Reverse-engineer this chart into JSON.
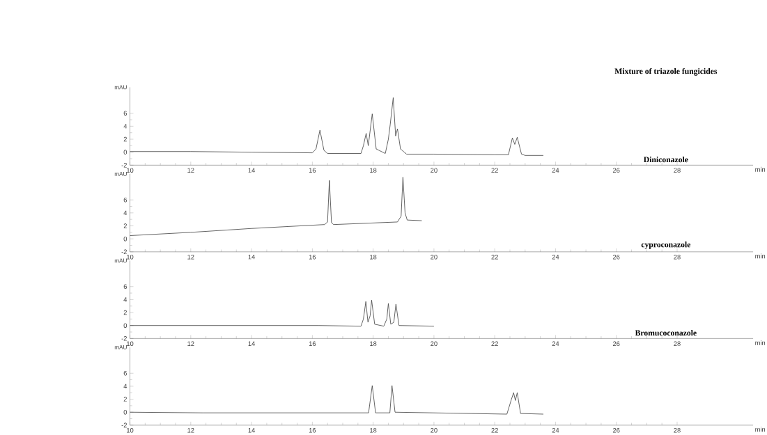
{
  "chart_data": [
    {
      "type": "line",
      "title": "Mixture of triazole fungicides",
      "xlabel": "min",
      "ylabel": "mAU",
      "xlim": [
        10,
        30.5
      ],
      "ylim": [
        -2,
        10
      ],
      "xticks": [
        10,
        12,
        14,
        16,
        18,
        20,
        22,
        24,
        26,
        28
      ],
      "yticks": [
        -2,
        0,
        2,
        4,
        6
      ],
      "grid": false,
      "series": [
        {
          "color": "#404040",
          "x": [
            10,
            12,
            14,
            16.0,
            16.12,
            16.25,
            16.38,
            16.5,
            17.6,
            17.68,
            17.77,
            17.84,
            17.97,
            18.1,
            18.4,
            18.5,
            18.56,
            18.66,
            18.74,
            18.8,
            18.9,
            19.1,
            20,
            22,
            22.45,
            22.58,
            22.66,
            22.74,
            22.88,
            23.0,
            23.6
          ],
          "values": [
            0.1,
            0.1,
            0.0,
            -0.1,
            0.5,
            3.4,
            0.3,
            -0.2,
            -0.2,
            1.0,
            2.9,
            1.0,
            5.9,
            0.5,
            -0.2,
            2.0,
            4.2,
            8.4,
            2.5,
            3.6,
            0.5,
            -0.3,
            -0.3,
            -0.4,
            -0.4,
            2.2,
            1.2,
            2.3,
            -0.3,
            -0.5,
            -0.5
          ]
        }
      ]
    },
    {
      "type": "line",
      "title": "Diniconazole",
      "xlabel": "min",
      "ylabel": "mAU",
      "xlim": [
        10,
        30.5
      ],
      "ylim": [
        -2,
        10
      ],
      "xticks": [
        10,
        12,
        14,
        16,
        18,
        20,
        22,
        24,
        26,
        28
      ],
      "yticks": [
        -2,
        0,
        2,
        4,
        6
      ],
      "grid": false,
      "series": [
        {
          "color": "#404040",
          "x": [
            10,
            12,
            14,
            16.4,
            16.5,
            16.56,
            16.63,
            16.7,
            18.8,
            18.92,
            18.98,
            19.05,
            19.12,
            19.6
          ],
          "values": [
            0.5,
            1.0,
            1.6,
            2.2,
            2.6,
            9.0,
            2.5,
            2.2,
            2.6,
            3.5,
            9.5,
            4.0,
            2.9,
            2.8
          ]
        }
      ]
    },
    {
      "type": "line",
      "title": "cyproconazole",
      "xlabel": "min",
      "ylabel": "mAU",
      "xlim": [
        10,
        30.5
      ],
      "ylim": [
        -2,
        10
      ],
      "xticks": [
        10,
        12,
        14,
        16,
        18,
        20,
        22,
        24,
        26,
        28
      ],
      "yticks": [
        -2,
        0,
        2,
        4,
        6
      ],
      "grid": false,
      "series": [
        {
          "color": "#404040",
          "x": [
            10,
            16.2,
            17.6,
            17.68,
            17.76,
            17.83,
            17.9,
            17.95,
            18.05,
            18.35,
            18.45,
            18.5,
            18.58,
            18.68,
            18.75,
            18.85,
            20
          ],
          "values": [
            0,
            0,
            -0.1,
            1,
            3.7,
            0.5,
            1.5,
            3.9,
            0.2,
            -0.1,
            1,
            3.4,
            0.2,
            0.5,
            3.3,
            0.0,
            -0.1
          ]
        }
      ]
    },
    {
      "type": "line",
      "title": "Bromucoconazole",
      "xlabel": "min",
      "ylabel": "mAU",
      "xlim": [
        10,
        30.5
      ],
      "ylim": [
        -2,
        10
      ],
      "xticks": [
        10,
        12,
        14,
        16,
        18,
        20,
        22,
        24,
        26,
        28
      ],
      "yticks": [
        -2,
        0,
        2,
        4,
        6
      ],
      "grid": false,
      "series": [
        {
          "color": "#404040",
          "x": [
            10,
            12.4,
            17.85,
            17.97,
            18.08,
            18.55,
            18.62,
            18.72,
            22.4,
            22.55,
            22.62,
            22.68,
            22.74,
            22.85,
            23.6
          ],
          "values": [
            0,
            -0.1,
            -0.1,
            4.1,
            -0.1,
            -0.1,
            4.1,
            0,
            -0.3,
            2.0,
            3.0,
            1.8,
            3.0,
            -0.2,
            -0.3
          ]
        }
      ]
    }
  ]
}
